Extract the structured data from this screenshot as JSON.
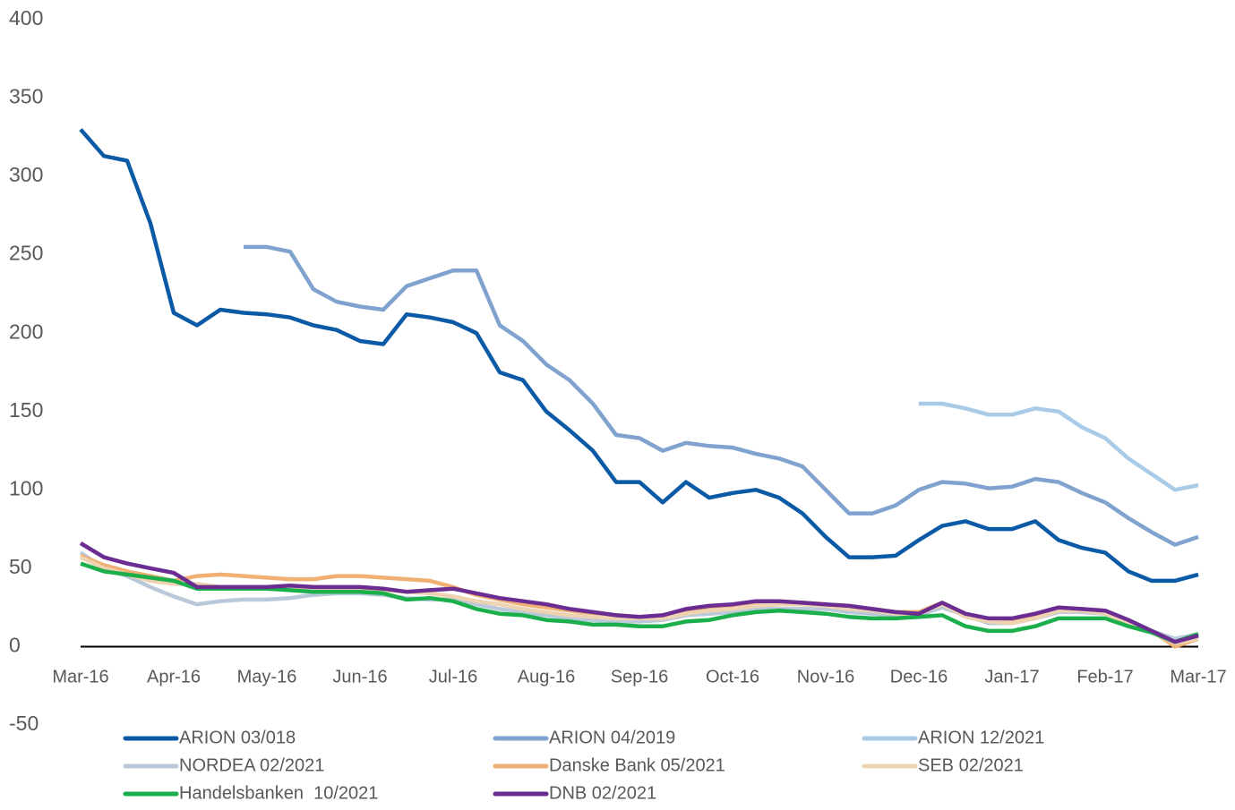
{
  "chart_data": {
    "type": "line",
    "categories": [
      "Mar-16",
      null,
      null,
      null,
      "Apr-16",
      null,
      null,
      null,
      "May-16",
      null,
      null,
      null,
      "Jun-16",
      null,
      null,
      null,
      "Jul-16",
      null,
      null,
      null,
      "Aug-16",
      null,
      null,
      null,
      "Sep-16",
      null,
      null,
      null,
      "Oct-16",
      null,
      null,
      null,
      "Nov-16",
      null,
      null,
      null,
      "Dec-16",
      null,
      null,
      null,
      "Jan-17",
      null,
      null,
      null,
      "Feb-17",
      null,
      null,
      null,
      "Mar-17"
    ],
    "ylim": [
      -50,
      400
    ],
    "yticks": [
      -50,
      0,
      50,
      100,
      150,
      200,
      250,
      300,
      350,
      400
    ],
    "grid": false,
    "series": [
      {
        "name": "ARION 03/018",
        "color": "#0b5aa6",
        "values": [
          330,
          313,
          310,
          270,
          213,
          205,
          215,
          213,
          212,
          210,
          205,
          202,
          195,
          193,
          212,
          210,
          207,
          200,
          175,
          170,
          150,
          138,
          125,
          105,
          105,
          92,
          105,
          95,
          98,
          100,
          95,
          85,
          70,
          57,
          57,
          58,
          68,
          77,
          80,
          75,
          75,
          80,
          68,
          63,
          60,
          48,
          42,
          42,
          46
        ]
      },
      {
        "name": "ARION 04/2019",
        "color": "#7fa2cf",
        "values": [
          null,
          null,
          null,
          null,
          null,
          null,
          null,
          255,
          255,
          252,
          228,
          220,
          217,
          215,
          230,
          235,
          240,
          240,
          205,
          195,
          180,
          170,
          155,
          135,
          133,
          125,
          130,
          128,
          127,
          123,
          120,
          115,
          100,
          85,
          85,
          90,
          100,
          105,
          104,
          101,
          102,
          107,
          105,
          98,
          92,
          82,
          73,
          65,
          70
        ]
      },
      {
        "name": "ARION 12/2021",
        "color": "#a9cbe8",
        "values": [
          null,
          null,
          null,
          null,
          null,
          null,
          null,
          null,
          null,
          null,
          null,
          null,
          null,
          null,
          null,
          null,
          null,
          null,
          null,
          null,
          null,
          null,
          null,
          null,
          null,
          null,
          null,
          null,
          null,
          null,
          null,
          null,
          null,
          null,
          null,
          null,
          155,
          155,
          152,
          148,
          148,
          152,
          150,
          140,
          133,
          120,
          110,
          100,
          103
        ]
      },
      {
        "name": "NORDEA 02/2021",
        "color": "#b9c9d9",
        "values": [
          60,
          50,
          45,
          38,
          32,
          27,
          29,
          30,
          30,
          31,
          33,
          34,
          34,
          33,
          31,
          30,
          30,
          27,
          24,
          22,
          20,
          18,
          17,
          16,
          16,
          17,
          20,
          21,
          22,
          24,
          24,
          24,
          24,
          22,
          21,
          20,
          20,
          25,
          20,
          15,
          15,
          18,
          22,
          22,
          21,
          15,
          10,
          5,
          8
        ]
      },
      {
        "name": "Danske Bank 05/2021",
        "color": "#f0b074",
        "values": [
          58,
          52,
          48,
          45,
          42,
          45,
          46,
          45,
          44,
          43,
          43,
          45,
          45,
          44,
          43,
          42,
          38,
          33,
          30,
          27,
          25,
          23,
          21,
          20,
          19,
          19,
          22,
          24,
          25,
          27,
          28,
          28,
          27,
          25,
          24,
          22,
          22,
          28,
          20,
          17,
          16,
          19,
          24,
          24,
          22,
          16,
          10,
          0,
          5
        ]
      },
      {
        "name": "SEB 02/2021",
        "color": "#eed3b3",
        "values": [
          57,
          50,
          46,
          42,
          40,
          40,
          38,
          38,
          38,
          38,
          37,
          37,
          37,
          36,
          35,
          34,
          32,
          29,
          27,
          24,
          22,
          20,
          19,
          18,
          18,
          18,
          21,
          23,
          24,
          26,
          27,
          27,
          26,
          24,
          23,
          21,
          21,
          27,
          19,
          16,
          15,
          18,
          23,
          23,
          21,
          15,
          9,
          2,
          5
        ]
      },
      {
        "name": "Handelsbanken  10/2021",
        "color": "#1aaf4b",
        "values": [
          53,
          48,
          46,
          44,
          42,
          37,
          37,
          37,
          37,
          36,
          35,
          35,
          35,
          34,
          30,
          31,
          29,
          24,
          21,
          20,
          17,
          16,
          14,
          14,
          13,
          13,
          16,
          17,
          20,
          22,
          23,
          22,
          21,
          19,
          18,
          18,
          19,
          20,
          13,
          10,
          10,
          13,
          18,
          18,
          18,
          13,
          9,
          3,
          8
        ]
      },
      {
        "name": "DNB 02/2021",
        "color": "#6b2d92",
        "values": [
          66,
          57,
          53,
          50,
          47,
          38,
          38,
          38,
          38,
          39,
          38,
          38,
          38,
          37,
          35,
          36,
          37,
          34,
          31,
          29,
          27,
          24,
          22,
          20,
          19,
          20,
          24,
          26,
          27,
          29,
          29,
          28,
          27,
          26,
          24,
          22,
          21,
          28,
          21,
          18,
          18,
          21,
          25,
          24,
          23,
          17,
          10,
          3,
          7
        ]
      }
    ]
  }
}
